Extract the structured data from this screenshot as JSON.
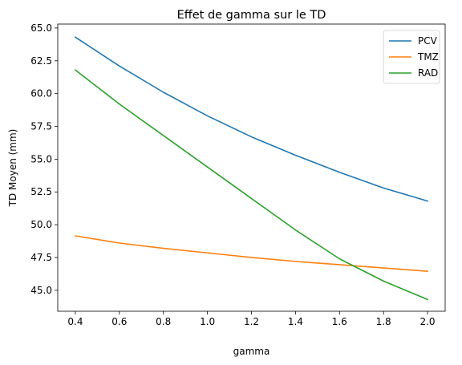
{
  "chart_data": {
    "type": "line",
    "title": "Effet de gamma sur le TD",
    "xlabel": "gamma",
    "ylabel": "TD Moyen (mm)",
    "xlim": [
      0.32,
      2.08
    ],
    "ylim": [
      43.4,
      65.3
    ],
    "xticks": [
      0.4,
      0.6,
      0.8,
      1.0,
      1.2,
      1.4,
      1.6,
      1.8,
      2.0
    ],
    "xtick_labels": [
      "0.4",
      "0.6",
      "0.8",
      "1.0",
      "1.2",
      "1.4",
      "1.6",
      "1.8",
      "2.0"
    ],
    "yticks": [
      45.0,
      47.5,
      50.0,
      52.5,
      55.0,
      57.5,
      60.0,
      62.5,
      65.0
    ],
    "ytick_labels": [
      "45.0",
      "47.5",
      "50.0",
      "52.5",
      "55.0",
      "57.5",
      "60.0",
      "62.5",
      "65.0"
    ],
    "grid": false,
    "legend": "top-right",
    "x": [
      0.4,
      0.6,
      0.8,
      1.0,
      1.2,
      1.4,
      1.6,
      1.8,
      2.0
    ],
    "series": [
      {
        "name": "PCV",
        "color": "#1f77b4",
        "values": [
          64.3,
          62.1,
          60.1,
          58.3,
          56.7,
          55.3,
          54.0,
          52.8,
          51.8
        ]
      },
      {
        "name": "TMZ",
        "color": "#ff7f0e",
        "values": [
          49.15,
          48.6,
          48.2,
          47.85,
          47.5,
          47.2,
          46.95,
          46.7,
          46.45
        ]
      },
      {
        "name": "RAD",
        "color": "#2ca02c",
        "values": [
          61.8,
          59.2,
          56.8,
          54.4,
          52.0,
          49.6,
          47.4,
          45.7,
          44.3
        ]
      }
    ]
  }
}
